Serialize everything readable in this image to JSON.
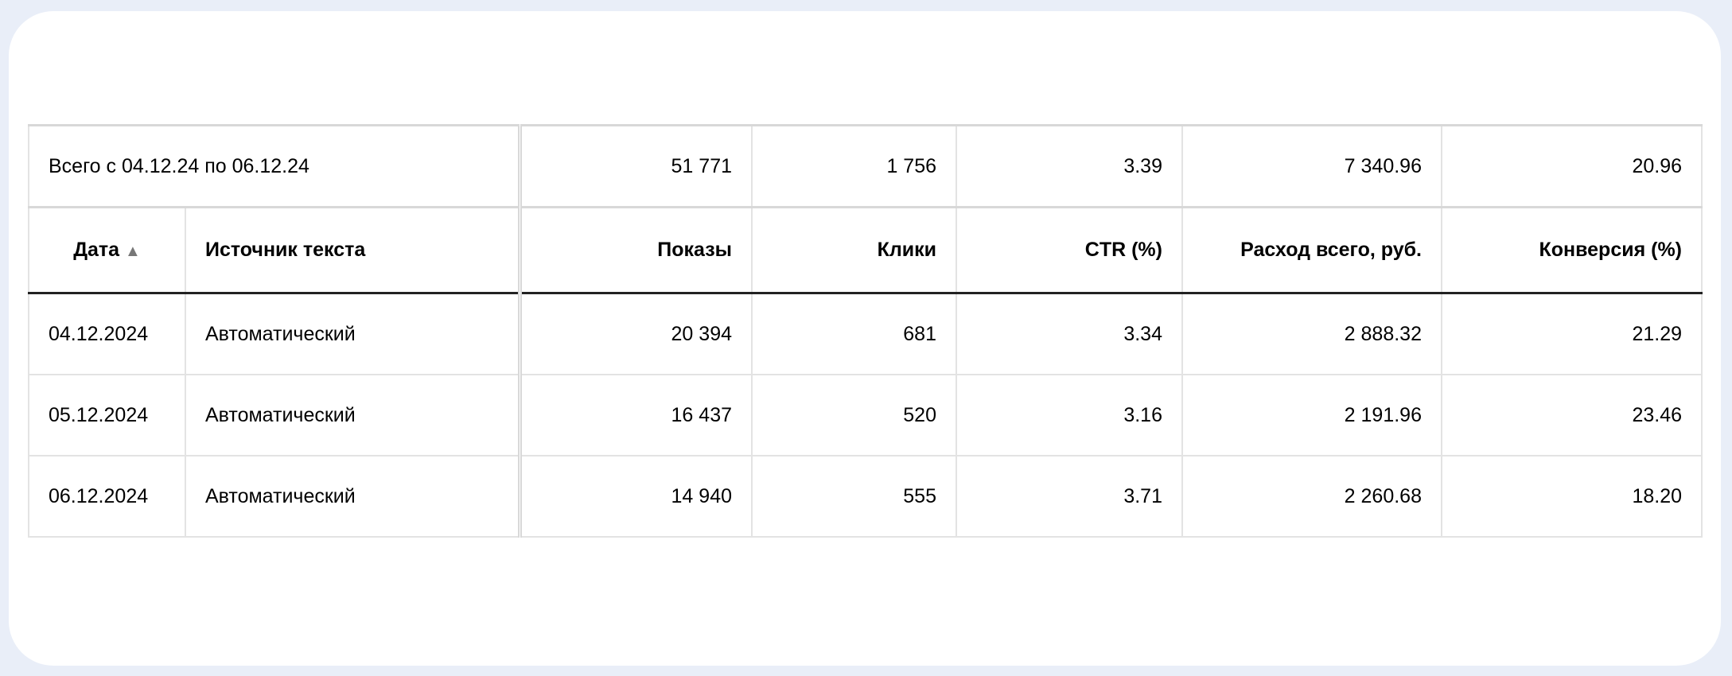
{
  "summary": {
    "label": "Всего с 04.12.24 по 06.12.24",
    "values": [
      "51 771",
      "1 756",
      "3.39",
      "7 340.96",
      "20.96"
    ]
  },
  "columns": [
    {
      "label": "Дата",
      "sort": "▲",
      "sort_icon": "sort-ascending-icon"
    },
    {
      "label": "Источник текста"
    },
    {
      "label": "Показы"
    },
    {
      "label": "Клики"
    },
    {
      "label": "CTR (%)"
    },
    {
      "label": "Расход всего, руб."
    },
    {
      "label": "Конверсия (%)"
    }
  ],
  "rows": [
    [
      "04.12.2024",
      "Автоматический",
      "20 394",
      "681",
      "3.34",
      "2 888.32",
      "21.29"
    ],
    [
      "05.12.2024",
      "Автоматический",
      "16 437",
      "520",
      "3.16",
      "2 191.96",
      "23.46"
    ],
    [
      "06.12.2024",
      "Автоматический",
      "14 940",
      "555",
      "3.71",
      "2 260.68",
      "18.20"
    ]
  ]
}
